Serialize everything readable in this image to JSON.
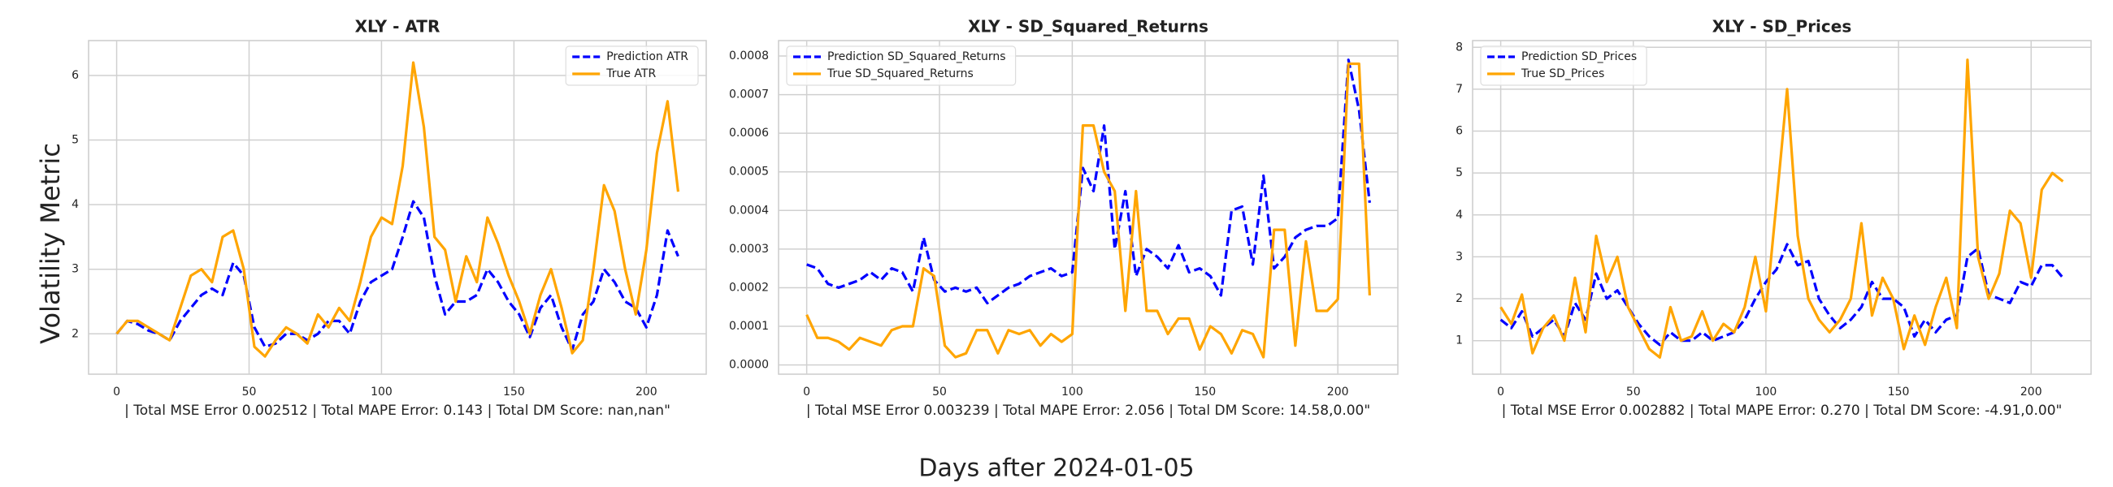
{
  "figure": {
    "xlabel": "Days after 2024-01-05",
    "ylabel": "Volatility Metric"
  },
  "chart_data": [
    {
      "type": "line",
      "title": "XLY - ATR",
      "xlabel": "| Total MSE Error 0.002512 | Total MAPE Error: 0.143 | Total DM Score: nan,nan\"",
      "x": [
        0,
        4,
        8,
        12,
        16,
        20,
        24,
        28,
        32,
        36,
        40,
        44,
        48,
        52,
        56,
        60,
        64,
        68,
        72,
        76,
        80,
        84,
        88,
        92,
        96,
        100,
        104,
        108,
        112,
        116,
        120,
        124,
        128,
        132,
        136,
        140,
        144,
        148,
        152,
        156,
        160,
        164,
        168,
        172,
        176,
        180,
        184,
        188,
        192,
        196,
        200,
        204,
        208,
        212
      ],
      "series": [
        {
          "name": "Prediction ATR",
          "color": "#0000ff",
          "linestyle": "dashed",
          "values": [
            2.0,
            2.2,
            2.15,
            2.05,
            2.0,
            1.9,
            2.2,
            2.4,
            2.6,
            2.7,
            2.6,
            3.1,
            2.9,
            2.1,
            1.8,
            1.85,
            2.0,
            2.0,
            1.9,
            2.0,
            2.2,
            2.2,
            2.0,
            2.5,
            2.8,
            2.9,
            3.0,
            3.5,
            4.05,
            3.8,
            2.9,
            2.3,
            2.5,
            2.5,
            2.6,
            3.0,
            2.8,
            2.5,
            2.3,
            1.95,
            2.4,
            2.6,
            2.1,
            1.75,
            2.3,
            2.5,
            3.0,
            2.8,
            2.5,
            2.4,
            2.1,
            2.6,
            3.6,
            3.2
          ]
        },
        {
          "name": "True ATR",
          "color": "#ffa500",
          "linestyle": "solid",
          "values": [
            2.0,
            2.2,
            2.2,
            2.1,
            2.0,
            1.9,
            2.4,
            2.9,
            3.0,
            2.8,
            3.5,
            3.6,
            3.0,
            1.8,
            1.65,
            1.9,
            2.1,
            2.0,
            1.85,
            2.3,
            2.1,
            2.4,
            2.2,
            2.8,
            3.5,
            3.8,
            3.7,
            4.6,
            6.2,
            5.2,
            3.5,
            3.3,
            2.5,
            3.2,
            2.8,
            3.8,
            3.4,
            2.9,
            2.5,
            2.0,
            2.6,
            3.0,
            2.4,
            1.7,
            1.9,
            3.0,
            4.3,
            3.9,
            3.0,
            2.3,
            3.3,
            4.8,
            5.6,
            4.2
          ]
        }
      ],
      "xlim": [
        -10.6,
        222.6
      ],
      "ylim": [
        1.375,
        6.54
      ],
      "xticks": [
        0,
        50,
        100,
        150,
        200
      ],
      "yticks": [
        2,
        3,
        4,
        5,
        6
      ],
      "grid": true,
      "legend": "upper right"
    },
    {
      "type": "line",
      "title": "XLY - SD_Squared_Returns",
      "xlabel": "| Total MSE Error 0.003239 | Total MAPE Error: 2.056 | Total DM Score: 14.58,0.00\"",
      "x": [
        0,
        4,
        8,
        12,
        16,
        20,
        24,
        28,
        32,
        36,
        40,
        44,
        48,
        52,
        56,
        60,
        64,
        68,
        72,
        76,
        80,
        84,
        88,
        92,
        96,
        100,
        104,
        108,
        112,
        116,
        120,
        124,
        128,
        132,
        136,
        140,
        144,
        148,
        152,
        156,
        160,
        164,
        168,
        172,
        176,
        180,
        184,
        188,
        192,
        196,
        200,
        204,
        208,
        212
      ],
      "series": [
        {
          "name": "Prediction SD_Squared_Returns",
          "color": "#0000ff",
          "linestyle": "dashed",
          "values": [
            0.00026,
            0.00025,
            0.00021,
            0.0002,
            0.00021,
            0.00022,
            0.00024,
            0.00022,
            0.00025,
            0.00024,
            0.00019,
            0.00033,
            0.00022,
            0.00019,
            0.0002,
            0.00019,
            0.0002,
            0.00016,
            0.00018,
            0.0002,
            0.00021,
            0.00023,
            0.00024,
            0.00025,
            0.00023,
            0.00024,
            0.00051,
            0.00045,
            0.00062,
            0.0003,
            0.00045,
            0.00023,
            0.0003,
            0.00028,
            0.00025,
            0.00031,
            0.00024,
            0.00025,
            0.00023,
            0.00018,
            0.0004,
            0.00041,
            0.00026,
            0.00049,
            0.00025,
            0.00028,
            0.00033,
            0.00035,
            0.00036,
            0.00036,
            0.00038,
            0.00079,
            0.00066,
            0.00042
          ]
        },
        {
          "name": "True SD_Squared_Returns",
          "color": "#ffa500",
          "linestyle": "solid",
          "values": [
            0.00013,
            7e-05,
            7e-05,
            6e-05,
            4e-05,
            7e-05,
            6e-05,
            5e-05,
            9e-05,
            0.0001,
            0.0001,
            0.00025,
            0.00023,
            5e-05,
            2e-05,
            3e-05,
            9e-05,
            9e-05,
            3e-05,
            9e-05,
            8e-05,
            9e-05,
            5e-05,
            8e-05,
            6e-05,
            8e-05,
            0.00062,
            0.00062,
            0.0005,
            0.00045,
            0.00014,
            0.00045,
            0.00014,
            0.00014,
            8e-05,
            0.00012,
            0.00012,
            4e-05,
            0.0001,
            8e-05,
            3e-05,
            9e-05,
            8e-05,
            2e-05,
            0.00035,
            0.00035,
            5e-05,
            0.00032,
            0.00014,
            0.00014,
            0.00017,
            0.00078,
            0.00078,
            0.00018
          ]
        }
      ],
      "xlim": [
        -10.6,
        222.6
      ],
      "ylim": [
        -2.4e-05,
        0.00084
      ],
      "xticks": [
        0,
        50,
        100,
        150,
        200
      ],
      "yticks": [
        {
          "value": 0,
          "label": "0.0000"
        },
        {
          "value": 0.0001,
          "label": "0.0001"
        },
        {
          "value": 0.0002,
          "label": "0.0002"
        },
        {
          "value": 0.0003,
          "label": "0.0003"
        },
        {
          "value": 0.0004,
          "label": "0.0004"
        },
        {
          "value": 0.0005,
          "label": "0.0005"
        },
        {
          "value": 0.0006,
          "label": "0.0006"
        },
        {
          "value": 0.0007,
          "label": "0.0007"
        },
        {
          "value": 0.0008,
          "label": "0.0008"
        }
      ],
      "grid": true,
      "legend": "upper left"
    },
    {
      "type": "line",
      "title": "XLY - SD_Prices",
      "xlabel": "| Total MSE Error 0.002882 | Total MAPE Error: 0.270 | Total DM Score: -4.91,0.00\"",
      "x": [
        0,
        4,
        8,
        12,
        16,
        20,
        24,
        28,
        32,
        36,
        40,
        44,
        48,
        52,
        56,
        60,
        64,
        68,
        72,
        76,
        80,
        84,
        88,
        92,
        96,
        100,
        104,
        108,
        112,
        116,
        120,
        124,
        128,
        132,
        136,
        140,
        144,
        148,
        152,
        156,
        160,
        164,
        168,
        172,
        176,
        180,
        184,
        188,
        192,
        196,
        200,
        204,
        208,
        212
      ],
      "series": [
        {
          "name": "Prediction SD_Prices",
          "color": "#0000ff",
          "linestyle": "dashed",
          "values": [
            1.5,
            1.3,
            1.7,
            1.1,
            1.3,
            1.5,
            1.1,
            1.9,
            1.5,
            2.6,
            2.0,
            2.2,
            1.8,
            1.4,
            1.1,
            0.9,
            1.2,
            1.0,
            1.0,
            1.2,
            1.0,
            1.1,
            1.2,
            1.5,
            2.0,
            2.4,
            2.7,
            3.3,
            2.8,
            2.9,
            2.0,
            1.6,
            1.3,
            1.5,
            1.8,
            2.4,
            2.0,
            2.0,
            1.8,
            1.1,
            1.5,
            1.2,
            1.5,
            1.6,
            3.0,
            3.2,
            2.1,
            2.0,
            1.9,
            2.4,
            2.3,
            2.8,
            2.8,
            2.5
          ]
        },
        {
          "name": "True SD_Prices",
          "color": "#ffa500",
          "linestyle": "solid",
          "values": [
            1.8,
            1.4,
            2.1,
            0.7,
            1.3,
            1.6,
            1.0,
            2.5,
            1.2,
            3.5,
            2.4,
            3.0,
            1.8,
            1.3,
            0.8,
            0.6,
            1.8,
            1.0,
            1.1,
            1.7,
            1.0,
            1.4,
            1.2,
            1.8,
            3.0,
            1.7,
            4.3,
            7.0,
            3.5,
            2.0,
            1.5,
            1.2,
            1.5,
            2.0,
            3.8,
            1.6,
            2.5,
            2.0,
            0.8,
            1.6,
            0.9,
            1.8,
            2.5,
            1.3,
            7.7,
            3.0,
            2.0,
            2.6,
            4.1,
            3.8,
            2.5,
            4.6,
            5.0,
            4.8
          ]
        }
      ],
      "xlim": [
        -10.6,
        222.6
      ],
      "ylim": [
        0.2,
        8.16
      ],
      "xticks": [
        0,
        50,
        100,
        150,
        200
      ],
      "yticks": [
        1,
        2,
        3,
        4,
        5,
        6,
        7,
        8
      ],
      "grid": true,
      "legend": "upper left"
    }
  ]
}
